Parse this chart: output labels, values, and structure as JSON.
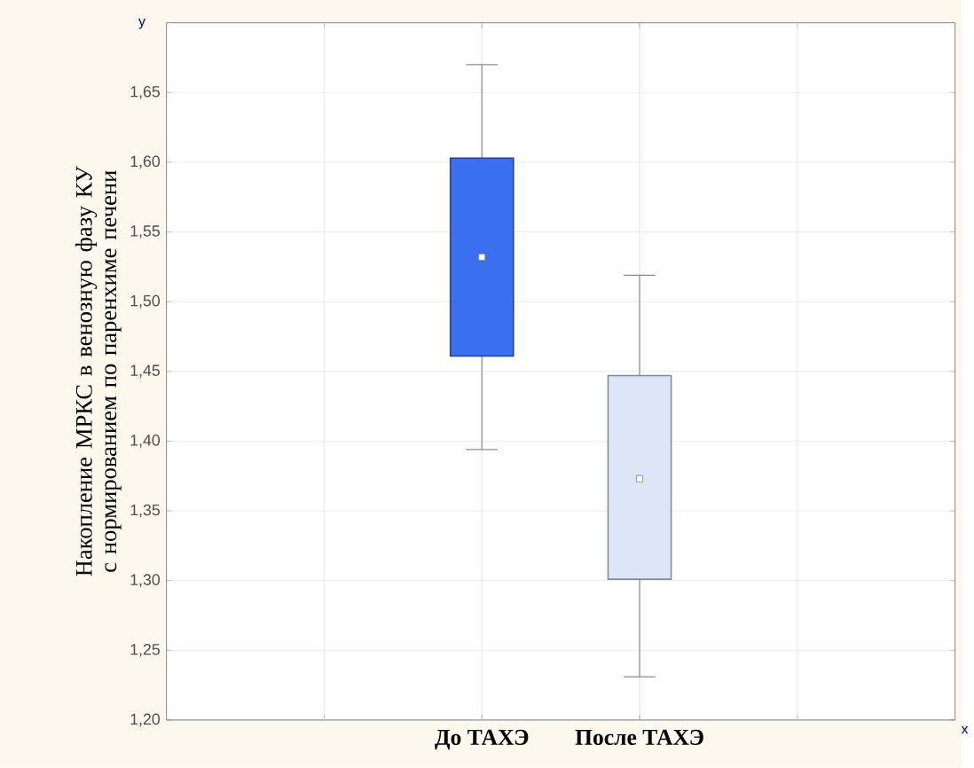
{
  "chart_data": {
    "type": "box",
    "categories": [
      "До ТАХЭ",
      "После ТАХЭ"
    ],
    "boxes": [
      {
        "low": 1.394,
        "q1": 1.461,
        "median": 1.532,
        "q3": 1.603,
        "high": 1.67
      },
      {
        "low": 1.231,
        "q1": 1.301,
        "median": 1.373,
        "q3": 1.447,
        "high": 1.519
      }
    ],
    "colors": [
      "#3a6ff0",
      "#dde6f6"
    ],
    "ylabel": "Накопление МРКС в венозную фазу КУ с нормированием по паренхиме печени",
    "xlabel": "x",
    "annotations": [
      "y"
    ],
    "ylim": [
      1.2,
      1.7
    ],
    "yticks": [
      {
        "value": 1.2,
        "label": "1,20"
      },
      {
        "value": 1.25,
        "label": "1,25"
      },
      {
        "value": 1.3,
        "label": "1,30"
      },
      {
        "value": 1.35,
        "label": "1,35"
      },
      {
        "value": 1.4,
        "label": "1,40"
      },
      {
        "value": 1.45,
        "label": "1,45"
      },
      {
        "value": 1.5,
        "label": "1,50"
      },
      {
        "value": 1.55,
        "label": "1,55"
      },
      {
        "value": 1.6,
        "label": "1,60"
      },
      {
        "value": 1.65,
        "label": "1,65"
      }
    ],
    "grid": true
  }
}
